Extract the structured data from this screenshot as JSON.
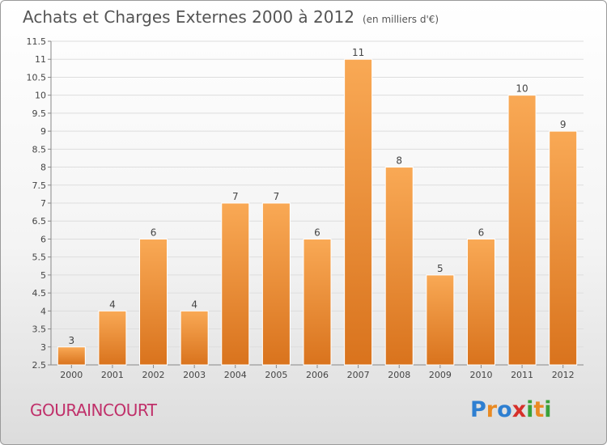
{
  "title": "Achats et Charges Externes 2000 à 2012",
  "subtitle": "(en milliers d'€)",
  "commune": "GOURAINCOURT",
  "logo": {
    "text": "Proxiti",
    "letters": [
      "P",
      "r",
      "o",
      "x",
      "i",
      "t",
      "i"
    ],
    "colors": [
      "#2e7fd1",
      "#e98a23",
      "#2e7fd1",
      "#d6302a",
      "#3aa13a",
      "#e98a23",
      "#3aa13a"
    ]
  },
  "colors": {
    "bar_top": "#f9a955",
    "bar_bottom": "#d9731d",
    "title": "#555555",
    "commune": "#c0306a"
  },
  "chart_data": {
    "type": "bar",
    "categories": [
      "2000",
      "2001",
      "2002",
      "2003",
      "2004",
      "2005",
      "2006",
      "2007",
      "2008",
      "2009",
      "2010",
      "2011",
      "2012"
    ],
    "values": [
      3,
      4,
      6,
      4,
      7,
      7,
      6,
      11,
      8,
      5,
      6,
      10,
      9
    ],
    "data_labels": [
      "3",
      "4",
      "6",
      "4",
      "7",
      "7",
      "6",
      "11",
      "8",
      "5",
      "6",
      "10",
      "9"
    ],
    "ylim": [
      2.5,
      11.5
    ],
    "yticks": [
      "2.5",
      "3",
      "3.5",
      "4",
      "4.5",
      "5",
      "5.5",
      "6",
      "6.5",
      "7",
      "7.5",
      "8",
      "8.5",
      "9",
      "9.5",
      "10",
      "10.5",
      "11",
      "11.5"
    ],
    "grid": true,
    "xlabel": "",
    "ylabel": ""
  }
}
